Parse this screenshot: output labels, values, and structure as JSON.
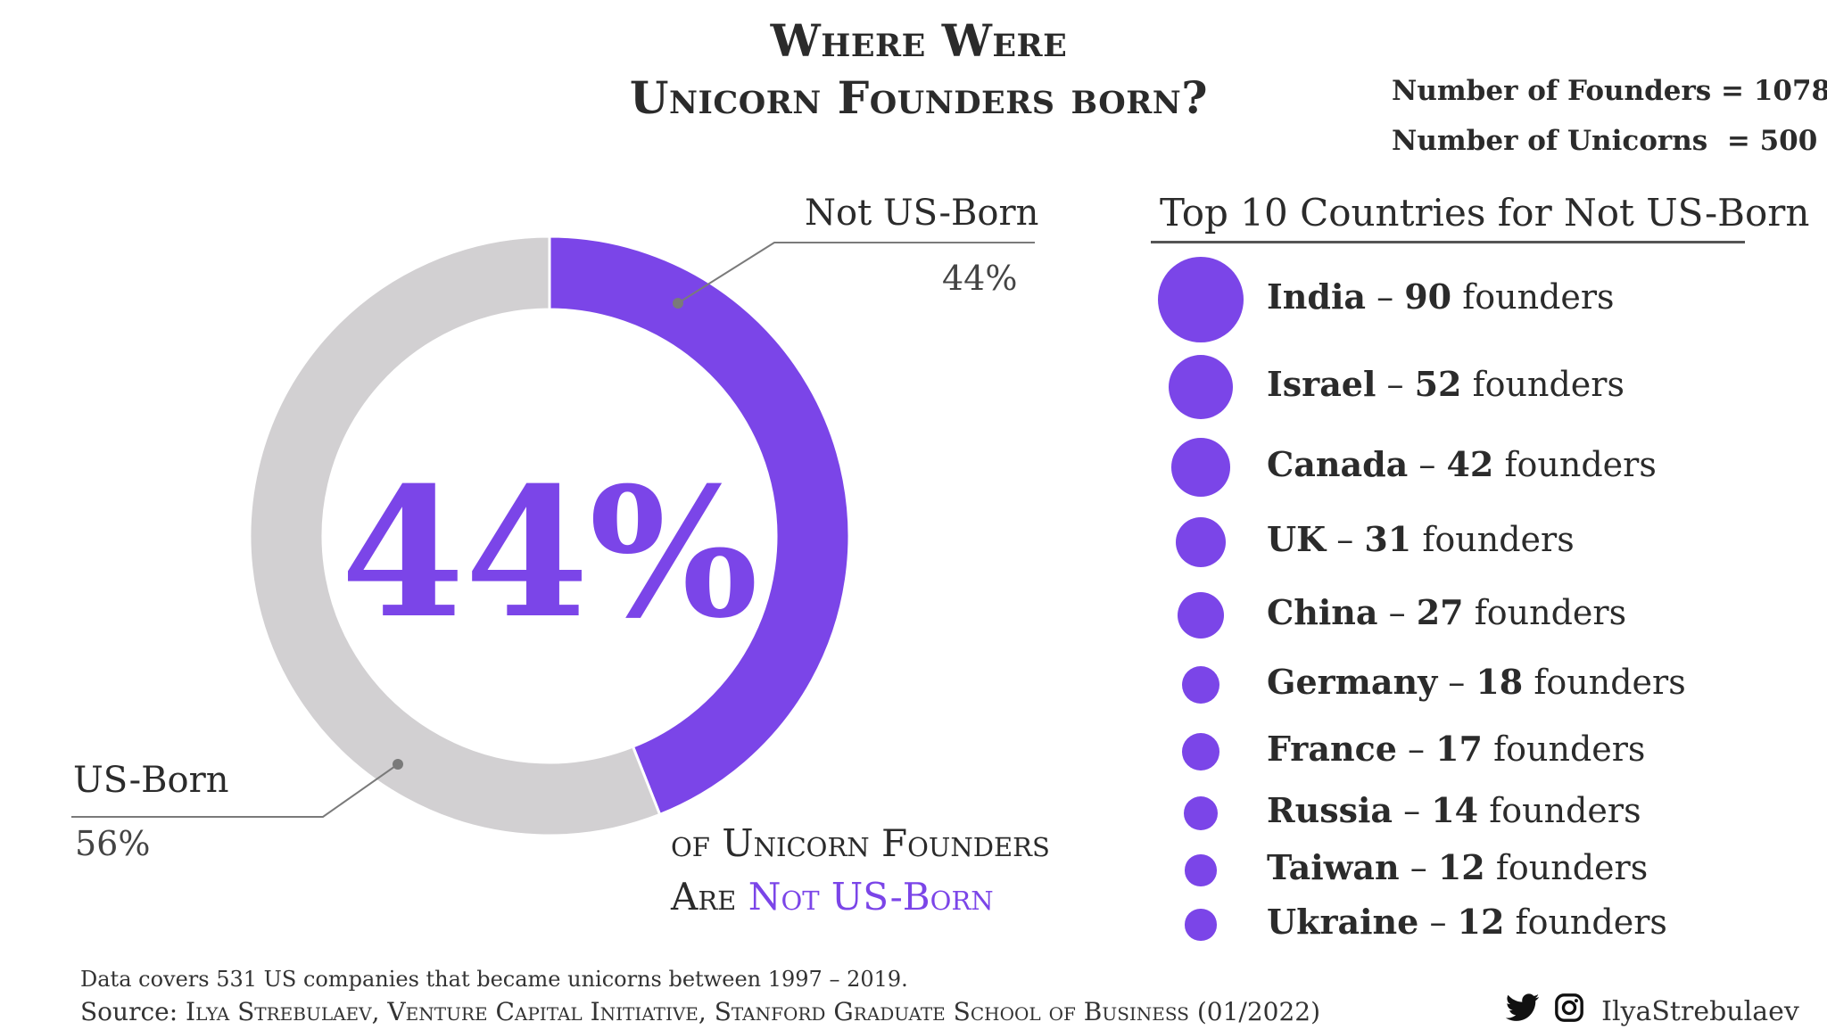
{
  "title_line1": "Where Were",
  "title_line2": "Unicorn Founders born?",
  "stats": {
    "founders": "Number of Founders = 1078",
    "unicorns": "Number of Unicorns  = 500"
  },
  "chart_data": [
    {
      "type": "pie",
      "variant": "donut",
      "slices": [
        {
          "label": "Not US-Born",
          "value": 44,
          "display": "44%",
          "color": "#7b45e8"
        },
        {
          "label": "US-Born",
          "value": 56,
          "display": "56%",
          "color": "#d2d0d2"
        }
      ],
      "center_label": "44%",
      "center_label_color": "#7b45e8"
    },
    {
      "type": "bubble",
      "title": "Top 10 Countries for Not US-Born",
      "categories": [
        "India",
        "Israel",
        "Canada",
        "UK",
        "China",
        "Germany",
        "France",
        "Russia",
        "Taiwan",
        "Ukraine"
      ],
      "values": [
        90,
        52,
        42,
        31,
        27,
        18,
        17,
        14,
        12,
        12
      ],
      "unit": "founders",
      "color": "#7b45e8"
    }
  ],
  "caption": {
    "line1": "of Unicorn Founders",
    "line2_prefix": "Are ",
    "line2_accent": "Not US-Born"
  },
  "footer": {
    "note": "Data covers 531 US companies that became unicorns between 1997 – 2019.",
    "source_prefix": "Source: ",
    "source_body": "Ilya Strebulaev, Venture Capital Initiative, Stanford Graduate School of Business",
    "source_date": " (01/2022)",
    "handle": "IlyaStrebulaev"
  },
  "icons": {
    "twitter": "twitter-bird-icon",
    "instagram": "instagram-icon"
  }
}
